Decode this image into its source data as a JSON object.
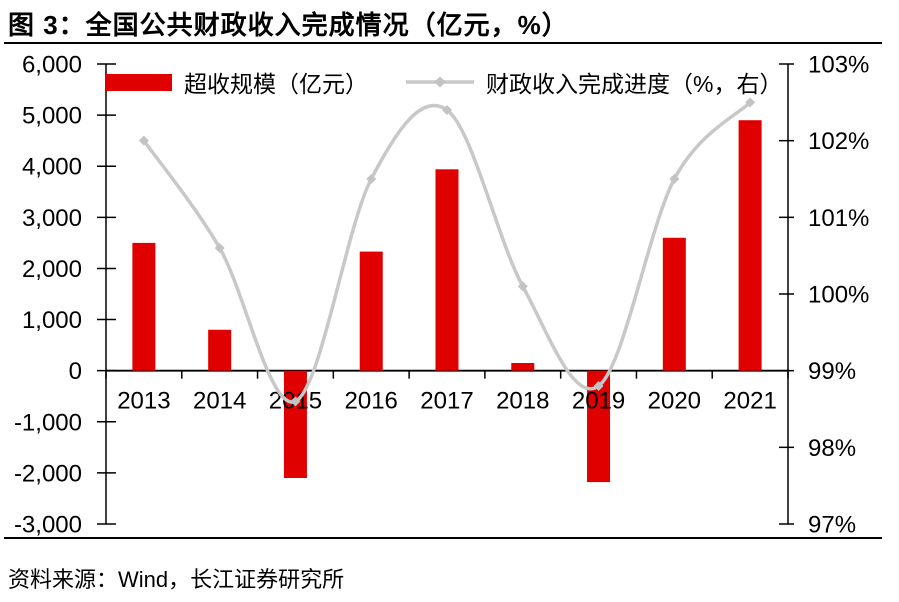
{
  "title": "图 3：全国公共财政收入完成情况（亿元，%）",
  "source": "资料来源：Wind，长江证券研究所",
  "legend": {
    "bar_label": "超收规模（亿元）",
    "line_label": "财政收入完成进度（%，右）"
  },
  "colors": {
    "bar": "#e00000",
    "line": "#c8c8c8",
    "marker": "#c3c3c3",
    "axis": "#000000",
    "text": "#000000"
  },
  "chart_data": {
    "type": "bar+line",
    "title": "图 3：全国公共财政收入完成情况（亿元，%）",
    "categories": [
      "2013",
      "2014",
      "2015",
      "2016",
      "2017",
      "2018",
      "2019",
      "2020",
      "2021"
    ],
    "series": [
      {
        "name": "超收规模（亿元）",
        "type": "bar",
        "yaxis": "left",
        "values": [
          2500,
          800,
          -2100,
          2330,
          3940,
          150,
          -2180,
          2600,
          4900
        ]
      },
      {
        "name": "财政收入完成进度（%，右）",
        "type": "line",
        "yaxis": "right",
        "values": [
          102.0,
          100.6,
          98.6,
          101.5,
          102.4,
          100.1,
          98.8,
          101.5,
          102.5
        ]
      }
    ],
    "left_axis": {
      "min": -3000,
      "max": 6000,
      "step": 1000,
      "tick_labels": [
        "6,000",
        "5,000",
        "4,000",
        "3,000",
        "2,000",
        "1,000",
        "0",
        "-1,000",
        "-2,000",
        "-3,000"
      ]
    },
    "right_axis": {
      "min": 97,
      "max": 103,
      "step": 1,
      "unit": "%",
      "tick_labels": [
        "103%",
        "102%",
        "101%",
        "100%",
        "99%",
        "98%",
        "97%"
      ]
    },
    "grid": false,
    "legend_position": "top",
    "line_style": "smooth",
    "marker": "diamond"
  }
}
